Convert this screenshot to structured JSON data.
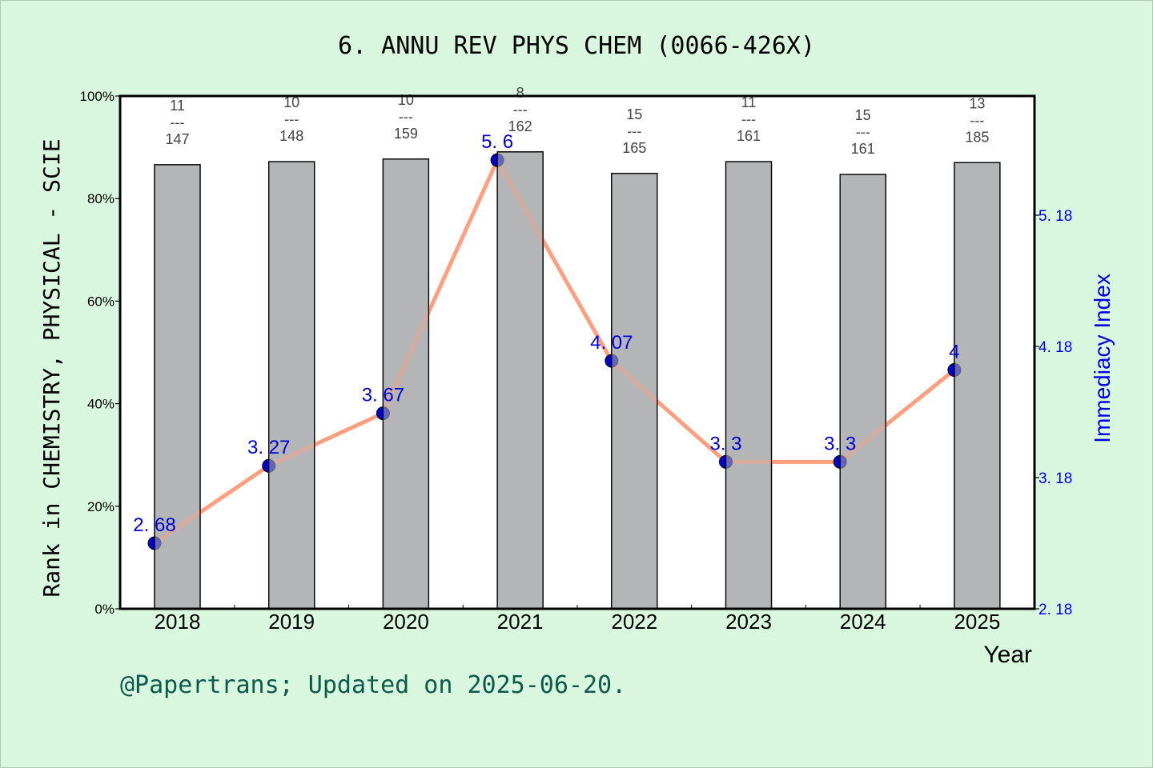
{
  "title": "6. ANNU REV PHYS CHEM (0066-426X)",
  "footer": "@Papertrans; Updated on 2025-06-20.",
  "colors": {
    "background": "#d9f6de",
    "plot_background": "#ffffff",
    "bar_fill": "#b4b5b7",
    "line": "#ff9f7f",
    "marker": "#0000cc",
    "right_axis": "#0000ee",
    "footer": "#0b5a4c"
  },
  "chart_data": {
    "type": "bar+line",
    "title": "6. ANNU REV PHYS CHEM (0066-426X)",
    "xlabel": "Year",
    "ylabel_left": "Rank in CHEMISTRY, PHYSICAL - SCIE",
    "ylabel_right": "Immediacy Index",
    "categories": [
      "2018",
      "2019",
      "2020",
      "2021",
      "2022",
      "2023",
      "2024",
      "2025"
    ],
    "left_axis": {
      "ylim": [
        0,
        100
      ],
      "ticks": [
        "0%",
        "20%",
        "40%",
        "60%",
        "80%",
        "100%"
      ],
      "tick_values": [
        0,
        20,
        40,
        60,
        80,
        100
      ]
    },
    "right_axis": {
      "ylim": [
        2.18,
        6.09
      ],
      "ticks": [
        "2. 18",
        "3. 18",
        "4. 18",
        "5. 18"
      ],
      "tick_values": [
        2.18,
        3.18,
        4.18,
        5.18
      ]
    },
    "series": [
      {
        "name": "Rank percentile",
        "type": "bar",
        "axis": "left",
        "values": [
          86.6,
          87.2,
          87.7,
          89.1,
          84.9,
          87.2,
          84.7,
          87.0
        ]
      },
      {
        "name": "Immediacy Index",
        "type": "line",
        "axis": "right",
        "values": [
          2.68,
          3.27,
          3.67,
          5.6,
          4.07,
          3.3,
          3.3,
          4.0
        ],
        "labels": [
          "2. 68",
          "3. 27",
          "3. 67",
          "5. 6",
          "4. 07",
          "3. 3",
          "3. 3",
          "4"
        ]
      }
    ],
    "rank_annotations": [
      {
        "rank": "11",
        "total": "147"
      },
      {
        "rank": "10",
        "total": "148"
      },
      {
        "rank": "10",
        "total": "159"
      },
      {
        "rank": "8",
        "total": "162"
      },
      {
        "rank": "15",
        "total": "165"
      },
      {
        "rank": "11",
        "total": "161"
      },
      {
        "rank": "15",
        "total": "161"
      },
      {
        "rank": "13",
        "total": "185"
      }
    ],
    "rank_separator": "---",
    "grid": false,
    "legend": "none"
  }
}
